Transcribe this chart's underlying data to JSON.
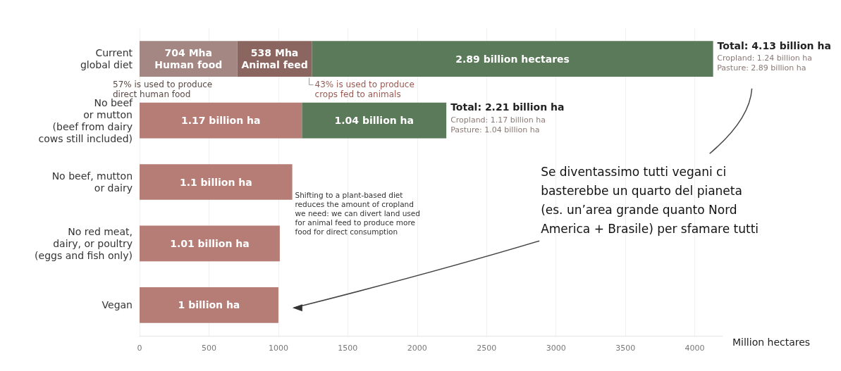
{
  "chart_data": {
    "type": "bar",
    "orientation": "horizontal",
    "stacked": true,
    "categories": [
      "Current\nglobal diet",
      "No beef\nor mutton\n(beef from dairy\ncows still included)",
      "No beef, mutton\nor dairy",
      "No red meat,\ndairy, or poultry\n(eggs and fish only)",
      "Vegan"
    ],
    "series": [
      {
        "color": "#a48782",
        "values": [
          704,
          null,
          null,
          null,
          null
        ],
        "value_labels": [
          "704 Mha\nHuman food",
          null,
          null,
          null,
          null
        ]
      },
      {
        "color": "#8b6660",
        "values": [
          538,
          null,
          null,
          null,
          null
        ],
        "value_labels": [
          "538 Mha\nAnimal feed",
          null,
          null,
          null,
          null
        ]
      },
      {
        "color": "#b57d75",
        "values": [
          null,
          1170,
          1100,
          1010,
          1000
        ]
      },
      {
        "color": "#5b7a5a",
        "values": [
          2890,
          1040,
          null,
          null,
          null
        ]
      }
    ],
    "totals": [
      "Total: 4.13 billion ha",
      "Total: 2.21 billion ha",
      null,
      null,
      null
    ],
    "xlim": [
      0,
      4200
    ],
    "xticks": [
      0,
      500,
      1000,
      1500,
      2000,
      2500,
      3000,
      3500,
      4000
    ],
    "xlabel": "Million hectares",
    "grid": "x",
    "annotations": [
      "2.89 billion hectares",
      "1.17 billion ha",
      "1.04 billion ha",
      "1.1 billion ha",
      "1.01 billion ha",
      "1 billion ha",
      {
        "text": "Cropland: 1.24 billion ha\nPasture: 2.89 billion ha",
        "x": 4130,
        "y": "Current\nglobal diet"
      },
      {
        "text": "Cropland: 1.17 billion ha\nPasture: 1.04 billion ha",
        "x": 2210,
        "y": "No beef\nor mutton\n(beef from dairy\ncows still included)"
      },
      "57% is used to produce\ndirect human food",
      "43% is used to produce\ncrops fed to animals",
      "Shifting to a plant-based diet\nreduces the amount of cropland\nwe need: we can divert land used\nfor animal feed to produce more\nfood for direct consumption",
      "Se diventassimo tutti vegani ci\nbasterebbe un quarto del pianeta\n(es. un’area grande quanto Nord\nAmerica + Brasile) per sfamare tutti"
    ]
  }
}
